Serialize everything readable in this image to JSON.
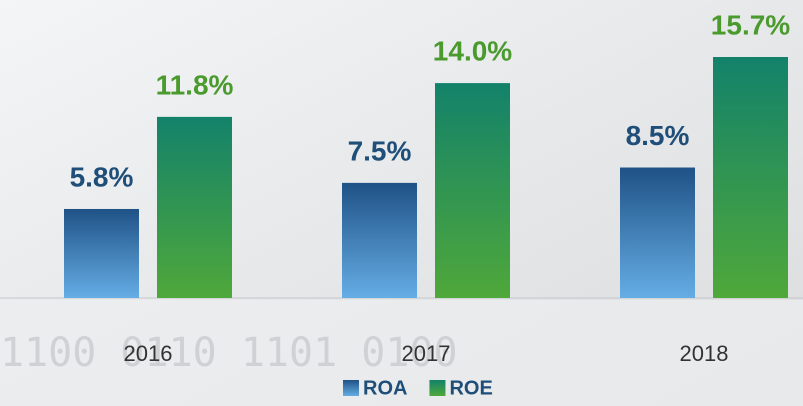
{
  "chart_data": {
    "type": "bar",
    "categories": [
      "2016",
      "2017",
      "2018"
    ],
    "series": [
      {
        "name": "ROA",
        "color": "#1f5286",
        "values": [
          5.8,
          7.5,
          8.5
        ],
        "value_labels": [
          "5.8%",
          "7.5%",
          "8.5%"
        ]
      },
      {
        "name": "ROE",
        "color": "#13826a",
        "values": [
          11.8,
          14.0,
          15.7
        ],
        "value_labels": [
          "11.8%",
          "14.0%",
          "15.7%"
        ]
      }
    ]
  }
}
